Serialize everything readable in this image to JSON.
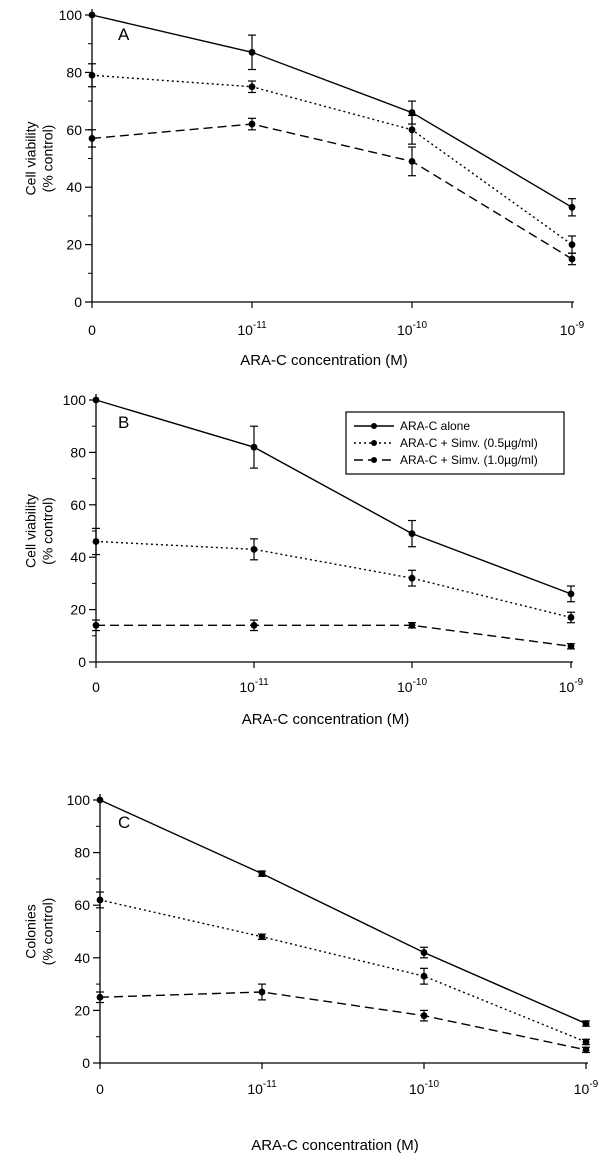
{
  "chart_data": [
    {
      "type": "line",
      "panel_label": "A",
      "ylabel": [
        "Cell viability",
        "(% control)"
      ],
      "xlabel": "ARA-C concentration (M)",
      "categories": [
        "0",
        "10-11",
        "10-10",
        "10-9"
      ],
      "yticks": [
        0,
        20,
        40,
        60,
        80,
        100
      ],
      "ylim": [
        0,
        100
      ],
      "grid": false,
      "series": [
        {
          "style": "solid",
          "values": [
            100,
            87,
            66,
            33
          ],
          "errors": [
            0,
            6,
            4,
            3
          ]
        },
        {
          "style": "dotted",
          "values": [
            79,
            75,
            60,
            20
          ],
          "errors": [
            4,
            2,
            5,
            3
          ]
        },
        {
          "style": "dashed",
          "values": [
            57,
            62,
            49,
            15
          ],
          "errors": [
            3,
            2,
            5,
            2
          ]
        }
      ]
    },
    {
      "type": "line",
      "panel_label": "B",
      "ylabel": [
        "Cell viability",
        "(% control)"
      ],
      "xlabel": "ARA-C concentration (M)",
      "categories": [
        "0",
        "10-11",
        "10-10",
        "10-9"
      ],
      "yticks": [
        0,
        20,
        40,
        60,
        80,
        100
      ],
      "ylim": [
        0,
        100
      ],
      "grid": false,
      "legend": {
        "position": "top-right",
        "entries": [
          {
            "label": "ARA-C alone",
            "style": "solid"
          },
          {
            "label": "ARA-C + Simv. (0.5µg/ml)",
            "style": "dotted"
          },
          {
            "label": "ARA-C + Simv. (1.0µg/ml)",
            "style": "dashed"
          }
        ]
      },
      "series": [
        {
          "name": "ARA-C alone",
          "style": "solid",
          "values": [
            100,
            82,
            49,
            26
          ],
          "errors": [
            0,
            8,
            5,
            3
          ]
        },
        {
          "name": "ARA-C + Simv. (0.5µg/ml)",
          "style": "dotted",
          "values": [
            46,
            43,
            32,
            17
          ],
          "errors": [
            5,
            4,
            3,
            2
          ]
        },
        {
          "name": "ARA-C + Simv. (1.0µg/ml)",
          "style": "dashed",
          "values": [
            14,
            14,
            14,
            6
          ],
          "errors": [
            2,
            2,
            1,
            1
          ]
        }
      ]
    },
    {
      "type": "line",
      "panel_label": "C",
      "ylabel": [
        "Colonies",
        "(% control)"
      ],
      "xlabel": "ARA-C concentration (M)",
      "categories": [
        "0",
        "10-11",
        "10-10",
        "10-9"
      ],
      "yticks": [
        0,
        20,
        40,
        60,
        80,
        100
      ],
      "ylim": [
        0,
        100
      ],
      "grid": false,
      "series": [
        {
          "style": "solid",
          "values": [
            100,
            72,
            42,
            15
          ],
          "errors": [
            0,
            1,
            2,
            1
          ]
        },
        {
          "style": "dotted",
          "values": [
            62,
            48,
            33,
            8
          ],
          "errors": [
            3,
            1,
            3,
            1
          ]
        },
        {
          "style": "dashed",
          "values": [
            25,
            27,
            18,
            5
          ],
          "errors": [
            2,
            3,
            2,
            1
          ]
        }
      ]
    }
  ]
}
